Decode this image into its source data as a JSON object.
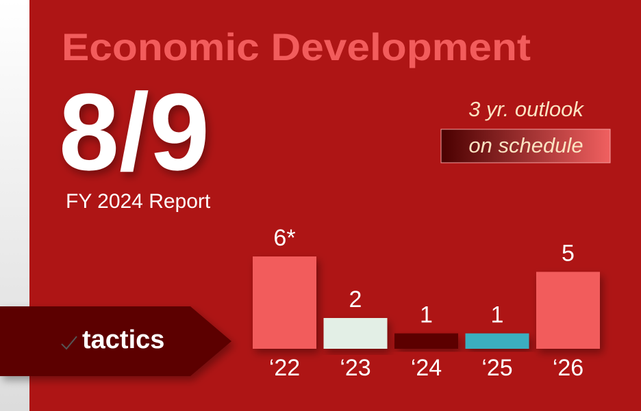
{
  "chart_data": {
    "type": "bar",
    "title": "Economic Development",
    "headline": "8/9",
    "subtitle": "FY 2024 Report",
    "annotations": [
      "3 yr. outlook",
      "on schedule"
    ],
    "label": "tactics",
    "categories": [
      "‘22",
      "‘23",
      "‘24",
      "‘25",
      "‘26"
    ],
    "values": [
      6,
      2,
      1,
      1,
      5
    ],
    "value_labels": [
      "6*",
      "2",
      "1",
      "1",
      "5"
    ],
    "colors": [
      "#f25c5c",
      "#e3efe6",
      "#5c0000",
      "#3aaebf",
      "#f25c5c"
    ]
  }
}
